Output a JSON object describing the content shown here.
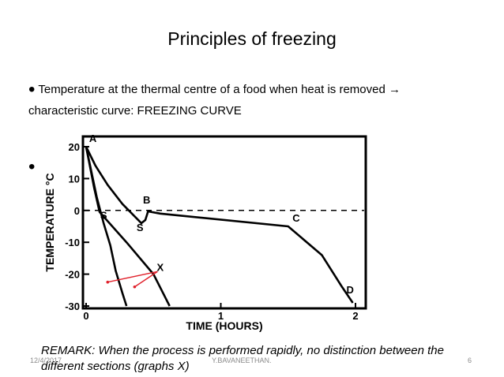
{
  "slide": {
    "title": "Principles of freezing",
    "bullet_1_line_1": "Temperature at the thermal centre of a food when heat is removed →",
    "bullet_1_line_2": "characteristic curve: FREEZING CURVE",
    "remark": "REMARK: When the process is performed rapidly, no distinction between the different sections (graphs X)",
    "footer_date": "12/4/2017",
    "footer_author": "Y.BAVANEETHAN.",
    "footer_page": "6"
  },
  "chart_data": {
    "type": "line",
    "xlabel": "TIME (HOURS)",
    "ylabel": "TEMPERATURE °C",
    "xlim": [
      0,
      2
    ],
    "ylim": [
      -30,
      22
    ],
    "x_ticks": [
      "0",
      "1",
      "2"
    ],
    "y_ticks": [
      "20",
      "10",
      "0",
      "-10",
      "-20",
      "-30"
    ],
    "reference_line": {
      "y": 0,
      "style": "dashed"
    },
    "point_labels": [
      "A",
      "S",
      "S",
      "B",
      "C",
      "D",
      "X"
    ],
    "series": [
      {
        "x": [
          0,
          0.07,
          0.16,
          0.27,
          0.41,
          0.44,
          0.46,
          0.55,
          1.5,
          1.75,
          1.9,
          1.98
        ],
        "y": [
          20,
          14,
          8,
          2,
          -4,
          -3,
          -0.3,
          -1,
          -5,
          -14,
          -24,
          -29
        ]
      },
      {
        "x": [
          0,
          0.04,
          0.08,
          0.13,
          0.18,
          0.22,
          0.27,
          0.3
        ],
        "y": [
          20,
          12,
          4,
          -4,
          -11,
          -19,
          -26,
          -30
        ]
      },
      {
        "x": [
          0,
          0.06,
          0.1,
          0.3,
          0.5,
          0.62
        ],
        "y": [
          20,
          7,
          -0.5,
          -10,
          -20,
          -30
        ]
      }
    ]
  }
}
